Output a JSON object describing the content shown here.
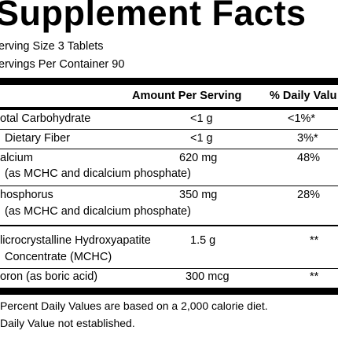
{
  "title": "Supplement Facts",
  "serving_size": "erving Size 3 Tablets",
  "servings_per_container": "ervings Per Container 90",
  "header": {
    "amount": "Amount Per Serving",
    "dv": "% Daily Valu"
  },
  "rows": [
    {
      "name": "otal Carbohydrate",
      "amount": "<1 g",
      "dv": "<1%*"
    },
    {
      "name": "Dietary Fiber",
      "amount": "<1 g",
      "dv": "3%*"
    },
    {
      "name": "alcium",
      "sub": "(as MCHC and dicalcium phosphate)",
      "amount": "620 mg",
      "dv": "48%"
    },
    {
      "name": "hosphorus",
      "sub": "(as MCHC and dicalcium phosphate)",
      "amount": "350 mg",
      "dv": "28%"
    },
    {
      "name": "licrocrystalline Hydroxyapatite",
      "sub": "Concentrate (MCHC)",
      "amount": "1.5 g",
      "dv": "**"
    },
    {
      "name": "oron (as boric acid)",
      "amount": "300 mcg",
      "dv": "**"
    }
  ],
  "footnotes": [
    "Percent Daily Values are based on a 2,000 calorie diet.",
    "Daily Value not established."
  ]
}
